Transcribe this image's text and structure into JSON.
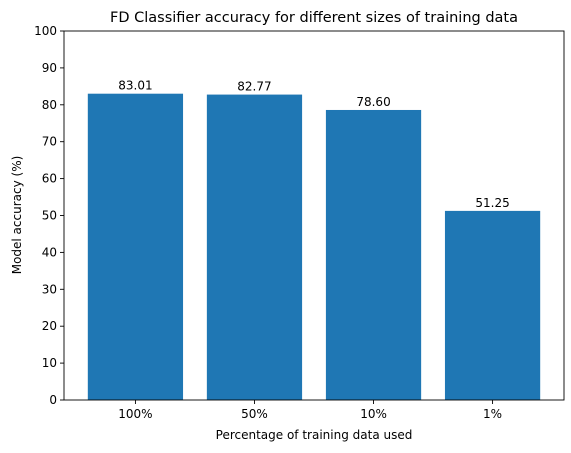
{
  "chart_data": {
    "type": "bar",
    "title": "FD Classifier accuracy for different sizes of training data",
    "xlabel": "Percentage of training data used",
    "ylabel": "Model accuracy (%)",
    "categories": [
      "100%",
      "50%",
      "10%",
      "1%"
    ],
    "values": [
      83.01,
      82.77,
      78.6,
      51.25
    ],
    "value_labels": [
      "83.01",
      "82.77",
      "78.60",
      "51.25"
    ],
    "ylim": [
      0,
      100
    ],
    "yticks": [
      0,
      10,
      20,
      30,
      40,
      50,
      60,
      70,
      80,
      90,
      100
    ],
    "grid": false,
    "legend": "none",
    "bar_color": "#1f77b4"
  }
}
